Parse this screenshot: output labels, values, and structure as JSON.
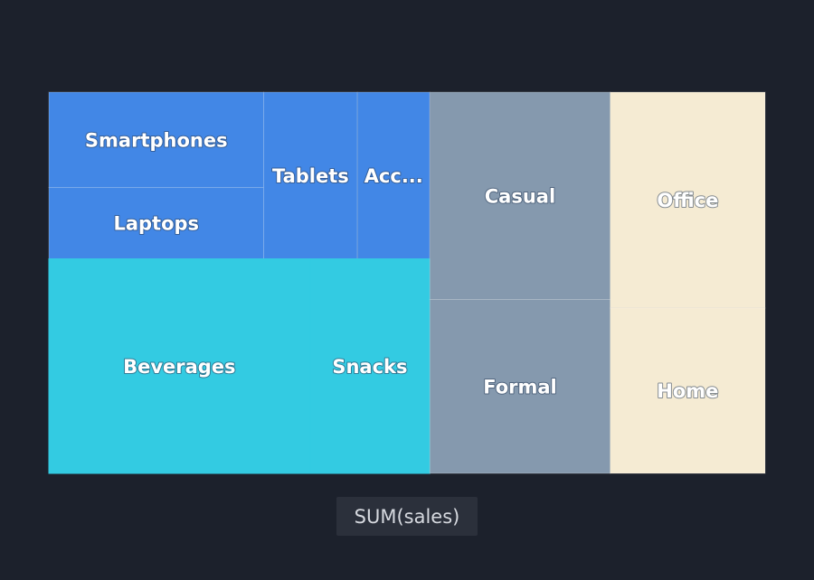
{
  "chart_data": {
    "type": "treemap",
    "measure_label": "SUM(sales)",
    "groups": [
      {
        "color": "#4287e6",
        "items": [
          {
            "label": "Smartphones",
            "value": 20.7
          },
          {
            "label": "Laptops",
            "value": 15.5
          },
          {
            "label": "Tablets",
            "value": 15.8
          },
          {
            "label": "Acc...",
            "value": 12.2
          }
        ]
      },
      {
        "color": "#33cbe2",
        "items": [
          {
            "label": "Beverages",
            "value": 56.6
          },
          {
            "label": "Snacks",
            "value": 26.0
          }
        ]
      },
      {
        "color": "#8599ae",
        "items": [
          {
            "label": "Casual",
            "value": 37.8
          },
          {
            "label": "Formal",
            "value": 31.7
          }
        ]
      },
      {
        "color": "#f5ebd3",
        "items": [
          {
            "label": "Office",
            "value": 33.8
          },
          {
            "label": "Home",
            "value": 25.9
          }
        ]
      }
    ]
  }
}
